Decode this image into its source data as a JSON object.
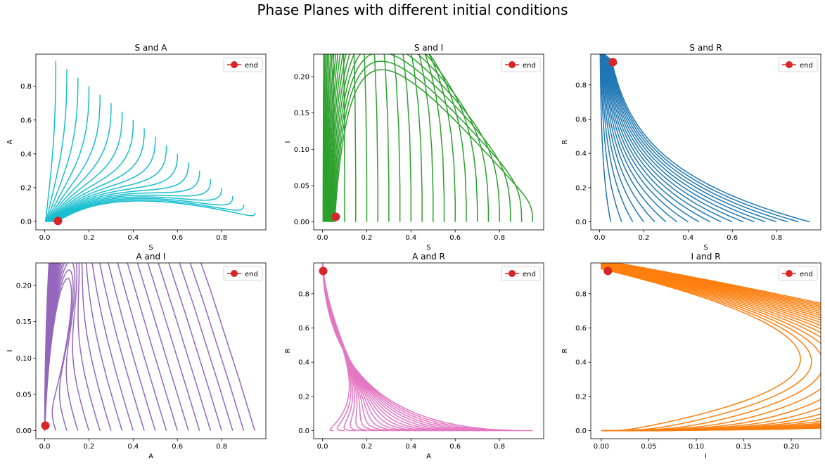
{
  "figure_title": "Phase Planes with different initial conditions",
  "legend_label": "end",
  "end_marker_color": "#d62728",
  "chart_data": [
    {
      "type": "line",
      "title": "S and A",
      "xlabel": "S",
      "ylabel": "A",
      "color": "#17becf",
      "xlim": [
        -0.04,
        1.0
      ],
      "ylim": [
        -0.05,
        0.99
      ],
      "xticks": [
        0.0,
        0.2,
        0.4,
        0.6,
        0.8
      ],
      "yticks": [
        0.0,
        0.2,
        0.4,
        0.6,
        0.8
      ],
      "xtick_labels": [
        "0.0",
        "0.2",
        "0.4",
        "0.6",
        "0.8"
      ],
      "ytick_labels": [
        "0.0",
        "0.2",
        "0.4",
        "0.6",
        "0.8"
      ],
      "series_count": 19,
      "end_point": [
        0.06,
        0.003
      ],
      "trajectory_starts": [
        [
          0.05,
          0.95
        ],
        [
          0.1,
          0.9
        ],
        [
          0.15,
          0.85
        ],
        [
          0.2,
          0.8
        ],
        [
          0.25,
          0.75
        ],
        [
          0.3,
          0.7
        ],
        [
          0.35,
          0.65
        ],
        [
          0.4,
          0.6
        ],
        [
          0.45,
          0.55
        ],
        [
          0.5,
          0.5
        ],
        [
          0.55,
          0.45
        ],
        [
          0.6,
          0.4
        ],
        [
          0.65,
          0.35
        ],
        [
          0.7,
          0.3
        ],
        [
          0.75,
          0.25
        ],
        [
          0.8,
          0.2
        ],
        [
          0.85,
          0.15
        ],
        [
          0.9,
          0.1
        ],
        [
          0.95,
          0.05
        ]
      ]
    },
    {
      "type": "line",
      "title": "S and I",
      "xlabel": "S",
      "ylabel": "I",
      "color": "#2ca02c",
      "xlim": [
        -0.04,
        1.0
      ],
      "ylim": [
        -0.011,
        0.231
      ],
      "xticks": [
        0.0,
        0.2,
        0.4,
        0.6,
        0.8
      ],
      "yticks": [
        0.0,
        0.05,
        0.1,
        0.15,
        0.2
      ],
      "xtick_labels": [
        "0.0",
        "0.2",
        "0.4",
        "0.6",
        "0.8"
      ],
      "ytick_labels": [
        "0.00",
        "0.05",
        "0.10",
        "0.15",
        "0.20"
      ],
      "series_count": 19,
      "end_point": [
        0.06,
        0.007
      ],
      "peak": [
        0.0,
        0.22
      ]
    },
    {
      "type": "line",
      "title": "S and R",
      "xlabel": "S",
      "ylabel": "R",
      "color": "#1f77b4",
      "xlim": [
        -0.04,
        1.0
      ],
      "ylim": [
        -0.047,
        0.98
      ],
      "xticks": [
        0.0,
        0.2,
        0.4,
        0.6,
        0.8
      ],
      "yticks": [
        0.0,
        0.2,
        0.4,
        0.6,
        0.8
      ],
      "xtick_labels": [
        "0.0",
        "0.2",
        "0.4",
        "0.6",
        "0.8"
      ],
      "ytick_labels": [
        "0.0",
        "0.2",
        "0.4",
        "0.6",
        "0.8"
      ],
      "series_count": 19,
      "end_point": [
        0.06,
        0.933
      ]
    },
    {
      "type": "line",
      "title": "A and I",
      "xlabel": "A",
      "ylabel": "I",
      "color": "#9467bd",
      "xlim": [
        -0.04,
        1.0
      ],
      "ylim": [
        -0.011,
        0.231
      ],
      "xticks": [
        0.0,
        0.2,
        0.4,
        0.6,
        0.8
      ],
      "yticks": [
        0.0,
        0.05,
        0.1,
        0.15,
        0.2
      ],
      "xtick_labels": [
        "0.0",
        "0.2",
        "0.4",
        "0.6",
        "0.8"
      ],
      "ytick_labels": [
        "0.00",
        "0.05",
        "0.10",
        "0.15",
        "0.20"
      ],
      "series_count": 19,
      "end_point": [
        0.003,
        0.007
      ],
      "peak": [
        0.21,
        0.22
      ]
    },
    {
      "type": "line",
      "title": "A and R",
      "xlabel": "A",
      "ylabel": "R",
      "color": "#e377c2",
      "xlim": [
        -0.04,
        1.0
      ],
      "ylim": [
        -0.047,
        0.98
      ],
      "xticks": [
        0.0,
        0.2,
        0.4,
        0.6,
        0.8
      ],
      "yticks": [
        0.0,
        0.2,
        0.4,
        0.6,
        0.8
      ],
      "xtick_labels": [
        "0.0",
        "0.2",
        "0.4",
        "0.6",
        "0.8"
      ],
      "ytick_labels": [
        "0.0",
        "0.2",
        "0.4",
        "0.6",
        "0.8"
      ],
      "series_count": 19,
      "end_point": [
        0.003,
        0.933
      ]
    },
    {
      "type": "line",
      "title": "I and R",
      "xlabel": "I",
      "ylabel": "R",
      "color": "#ff7f0e",
      "xlim": [
        -0.011,
        0.231
      ],
      "ylim": [
        -0.047,
        0.98
      ],
      "xticks": [
        0.0,
        0.05,
        0.1,
        0.15,
        0.2
      ],
      "yticks": [
        0.0,
        0.2,
        0.4,
        0.6,
        0.8
      ],
      "xtick_labels": [
        "0.00",
        "0.05",
        "0.10",
        "0.15",
        "0.20"
      ],
      "ytick_labels": [
        "0.0",
        "0.2",
        "0.4",
        "0.6",
        "0.8"
      ],
      "series_count": 19,
      "end_point": [
        0.007,
        0.933
      ],
      "peak": [
        0.22,
        0.55
      ]
    }
  ]
}
